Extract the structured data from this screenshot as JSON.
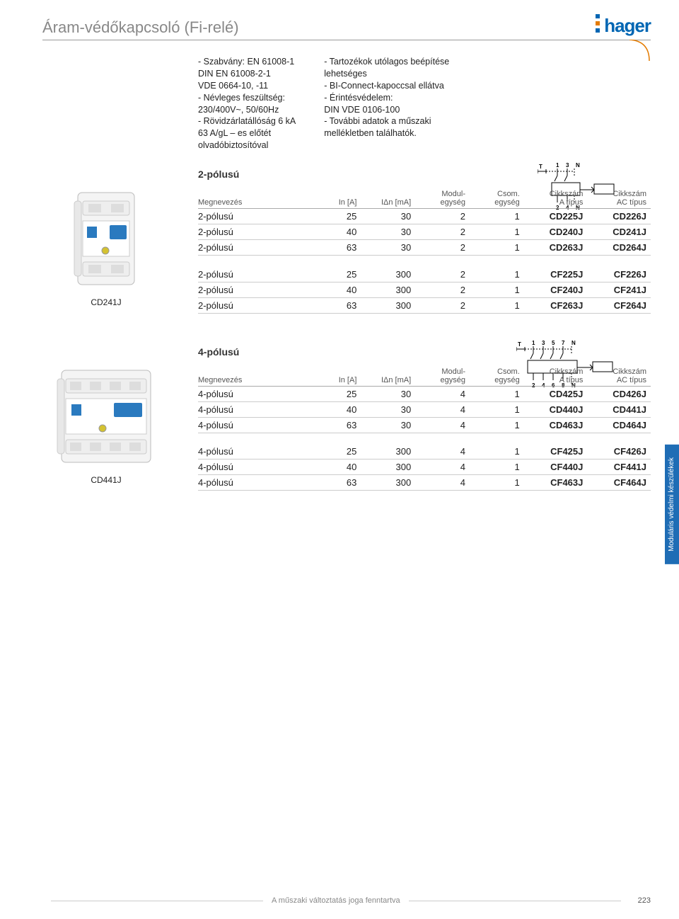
{
  "brand": {
    "name": "hager",
    "color": "#0066b3",
    "dot_colors": [
      "#0066b3",
      "#e47b00",
      "#0066b3"
    ]
  },
  "title": "Áram-védőkapcsoló (Fi-relé)",
  "specs_left": [
    "- Szabvány: EN 61008-1",
    "  DIN EN 61008-2-1",
    "  VDE 0664-10, -11",
    "- Névleges feszültség:",
    "  230/400V~, 50/60Hz",
    "- Rövidzárlatállóság 6 kA",
    "  63 A/gL – es előtét",
    "  olvadóbiztosítóval"
  ],
  "specs_right": [
    "- Tartozékok utólagos beépítése",
    "  lehetséges",
    "- BI-Connect-kapoccsal ellátva",
    "- Érintésvédelem:",
    "  DIN VDE 0106-100",
    "- További adatok a műszaki",
    "  mellékletben találhatók."
  ],
  "section_2p": "2-pólusú",
  "section_4p": "4-pólusú",
  "columns": {
    "name": "Megnevezés",
    "in": "In [A]",
    "idn": "IΔn [mA]",
    "mod": "Modul-",
    "mod2": "egység",
    "csom": "Csom.",
    "csom2": "egység",
    "cikkA": "Cikkszám",
    "cikkA2": "A típus",
    "cikkAC": "Cikkszám",
    "cikkAC2": "AC típus"
  },
  "product_labels": {
    "p2": "CD241J",
    "p4": "CD441J"
  },
  "table_2p_a": [
    {
      "n": "2-pólusú",
      "in": "25",
      "idn": "30",
      "mod": "2",
      "cs": "1",
      "a": "CD225J",
      "ac": "CD226J"
    },
    {
      "n": "2-pólusú",
      "in": "40",
      "idn": "30",
      "mod": "2",
      "cs": "1",
      "a": "CD240J",
      "ac": "CD241J"
    },
    {
      "n": "2-pólusú",
      "in": "63",
      "idn": "30",
      "mod": "2",
      "cs": "1",
      "a": "CD263J",
      "ac": "CD264J"
    }
  ],
  "table_2p_b": [
    {
      "n": "2-pólusú",
      "in": "25",
      "idn": "300",
      "mod": "2",
      "cs": "1",
      "a": "CF225J",
      "ac": "CF226J"
    },
    {
      "n": "2-pólusú",
      "in": "40",
      "idn": "300",
      "mod": "2",
      "cs": "1",
      "a": "CF240J",
      "ac": "CF241J"
    },
    {
      "n": "2-pólusú",
      "in": "63",
      "idn": "300",
      "mod": "2",
      "cs": "1",
      "a": "CF263J",
      "ac": "CF264J"
    }
  ],
  "table_4p_a": [
    {
      "n": "4-pólusú",
      "in": "25",
      "idn": "30",
      "mod": "4",
      "cs": "1",
      "a": "CD425J",
      "ac": "CD426J"
    },
    {
      "n": "4-pólusú",
      "in": "40",
      "idn": "30",
      "mod": "4",
      "cs": "1",
      "a": "CD440J",
      "ac": "CD441J"
    },
    {
      "n": "4-pólusú",
      "in": "63",
      "idn": "30",
      "mod": "4",
      "cs": "1",
      "a": "CD463J",
      "ac": "CD464J"
    }
  ],
  "table_4p_b": [
    {
      "n": "4-pólusú",
      "in": "25",
      "idn": "300",
      "mod": "4",
      "cs": "1",
      "a": "CF425J",
      "ac": "CF426J"
    },
    {
      "n": "4-pólusú",
      "in": "40",
      "idn": "300",
      "mod": "4",
      "cs": "1",
      "a": "CF440J",
      "ac": "CF441J"
    },
    {
      "n": "4-pólusú",
      "in": "63",
      "idn": "300",
      "mod": "4",
      "cs": "1",
      "a": "CF463J",
      "ac": "CF464J"
    }
  ],
  "side_tab": "Moduláris védelmi készülékek",
  "side_tab_color": "#1f6db5",
  "footer_text": "A műszaki változtatás joga fenntartva",
  "page_number": "223",
  "diagram_2p": {
    "terminals_top": [
      "1",
      "3",
      "N"
    ],
    "terminals_bot": [
      "2",
      "4",
      "N"
    ],
    "label": "T"
  },
  "diagram_4p": {
    "terminals_top": [
      "1",
      "3",
      "5",
      "7",
      "N"
    ],
    "terminals_bot": [
      "2",
      "4",
      "6",
      "8",
      "N"
    ],
    "label": "T"
  },
  "colors": {
    "text": "#333",
    "border": "#ccc",
    "header_border": "#999"
  },
  "col_widths": {
    "name": "26%",
    "in": "10%",
    "idn": "12%",
    "mod": "12%",
    "cs": "12%",
    "a": "14%",
    "ac": "14%"
  }
}
